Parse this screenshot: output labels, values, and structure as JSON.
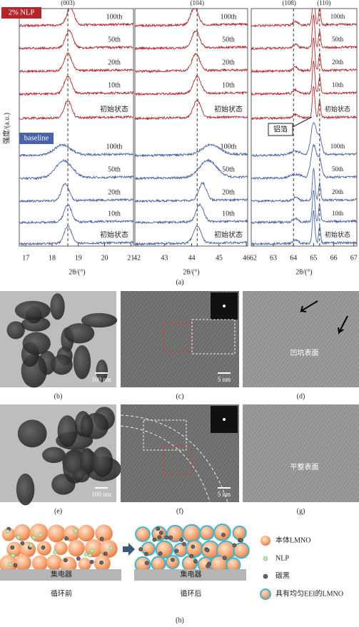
{
  "xrd": {
    "y_label": "强度/(a.u.)",
    "x_label": "2θ/(°)",
    "caption": "(a)",
    "groups": [
      {
        "name": "2% NLP",
        "color": "#b5262b"
      },
      {
        "name": "baseline",
        "color": "#4a62a8"
      }
    ],
    "foil_label": "铝箔",
    "panels": [
      {
        "xlim": [
          16.75,
          21.1
        ],
        "xticks": [
          17,
          18,
          19,
          20,
          21
        ],
        "hkl": [
          {
            "label": "(003)",
            "value": 18.6
          }
        ],
        "series": [
          {
            "name": "100th",
            "color": "#b5262b",
            "peaks": [
              18.7
            ]
          },
          {
            "name": "50th",
            "color": "#b5262b",
            "peaks": [
              18.65
            ]
          },
          {
            "name": "20th",
            "color": "#b5262b",
            "peaks": [
              18.6
            ]
          },
          {
            "name": "10th",
            "color": "#b5262b",
            "peaks": [
              18.6
            ]
          },
          {
            "name": "初始状态",
            "color": "#b5262b",
            "peaks": [
              18.6
            ]
          },
          {
            "name": "100th",
            "color": "#4a62a8",
            "peaks": [
              18.4
            ]
          },
          {
            "name": "50th",
            "color": "#4a62a8",
            "peaks": [
              18.45
            ]
          },
          {
            "name": "20th",
            "color": "#4a62a8",
            "peaks": [
              18.5
            ]
          },
          {
            "name": "10th",
            "color": "#4a62a8",
            "peaks": [
              18.6
            ]
          },
          {
            "name": "初始状态",
            "color": "#4a62a8",
            "peaks": [
              18.6
            ]
          }
        ]
      },
      {
        "xlim": [
          41.92,
          46.05
        ],
        "xticks": [
          42,
          43,
          44,
          45,
          46
        ],
        "hkl": [
          {
            "label": "(104)",
            "value": 44.2
          }
        ],
        "series": [
          {
            "name": "100th",
            "color": "#b5262b",
            "peaks": [
              44.1
            ]
          },
          {
            "name": "50th",
            "color": "#b5262b",
            "peaks": [
              44.15
            ]
          },
          {
            "name": "20th",
            "color": "#b5262b",
            "peaks": [
              44.15
            ]
          },
          {
            "name": "10th",
            "color": "#b5262b",
            "peaks": [
              44.2
            ]
          },
          {
            "name": "初始状态",
            "color": "#b5262b",
            "peaks": [
              44.2
            ]
          },
          {
            "name": "100th",
            "color": "#4a62a8",
            "peaks": [
              44.7
            ]
          },
          {
            "name": "50th",
            "color": "#4a62a8",
            "peaks": [
              44.6
            ]
          },
          {
            "name": "20th",
            "color": "#4a62a8",
            "peaks": [
              44.4
            ]
          },
          {
            "name": "10th",
            "color": "#4a62a8",
            "peaks": [
              44.3
            ]
          },
          {
            "name": "初始状态",
            "color": "#4a62a8",
            "peaks": [
              44.2
            ]
          }
        ]
      },
      {
        "xlim": [
          61.9,
          67.15
        ],
        "xticks": [
          62,
          63,
          64,
          65,
          66,
          67
        ],
        "hkl": [
          {
            "label": "(108)",
            "value": 64.0
          },
          {
            "label": "(110)",
            "value": 65.3
          }
        ],
        "series": [
          {
            "name": "100th",
            "color": "#b5262b",
            "peaks": [
              64.1,
              65.0,
              65.3
            ]
          },
          {
            "name": "50th",
            "color": "#b5262b",
            "peaks": [
              64.1,
              65.0,
              65.3
            ]
          },
          {
            "name": "20th",
            "color": "#b5262b",
            "peaks": [
              64.1,
              65.0,
              65.3
            ]
          },
          {
            "name": "10th",
            "color": "#b5262b",
            "peaks": [
              64.1,
              65.0,
              65.3
            ]
          },
          {
            "name": "初始状态",
            "color": "#b5262b",
            "peaks": [
              64.1,
              65.0,
              65.3
            ]
          },
          {
            "name": "100th",
            "color": "#4a62a8",
            "peaks": [
              64.1,
              65.0,
              65.3
            ]
          },
          {
            "name": "50th",
            "color": "#4a62a8",
            "peaks": [
              64.1,
              65.0,
              65.3
            ]
          },
          {
            "name": "20th",
            "color": "#4a62a8",
            "peaks": [
              64.1,
              65.0,
              65.3
            ]
          },
          {
            "name": "10th",
            "color": "#4a62a8",
            "peaks": [
              64.1,
              65.0,
              65.3
            ]
          },
          {
            "name": "初始状态",
            "color": "#4a62a8",
            "peaks": [
              64.1,
              65.0,
              65.3
            ]
          }
        ]
      }
    ]
  },
  "micrographs": [
    {
      "caption": "(b)",
      "scale": "100 nm"
    },
    {
      "caption": "(c)",
      "scale": "5 nm"
    },
    {
      "caption": "(d)",
      "note": "凹坑表面"
    },
    {
      "caption": "(e)",
      "scale": "100 nm"
    },
    {
      "caption": "(f)",
      "scale": "5 nm"
    },
    {
      "caption": "(g)",
      "note": "平整表面"
    }
  ],
  "schematic": {
    "collector": "集电器",
    "before": "循环前",
    "after": "循环后",
    "legend": [
      "本体LMNO",
      "NLP",
      "碳黑",
      "具有均匀EEI的LMNO"
    ],
    "caption": "(h)"
  }
}
